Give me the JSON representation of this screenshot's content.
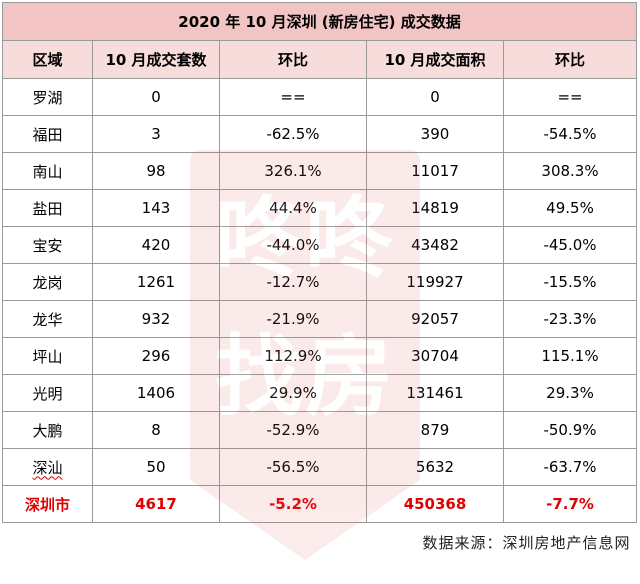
{
  "title": "2020 年 10 月深圳 (新房住宅) 成交数据",
  "headers": [
    "区域",
    "10 月成交套数",
    "环比",
    "10 月成交面积",
    "环比"
  ],
  "rows": [
    [
      "罗湖",
      "0",
      "==",
      "0",
      "=="
    ],
    [
      "福田",
      "3",
      "-62.5%",
      "390",
      "-54.5%"
    ],
    [
      "南山",
      "98",
      "326.1%",
      "11017",
      "308.3%"
    ],
    [
      "盐田",
      "143",
      "44.4%",
      "14819",
      "49.5%"
    ],
    [
      "宝安",
      "420",
      "-44.0%",
      "43482",
      "-45.0%"
    ],
    [
      "龙岗",
      "1261",
      "-12.7%",
      "119927",
      "-15.5%"
    ],
    [
      "龙华",
      "932",
      "-21.9%",
      "92057",
      "-23.3%"
    ],
    [
      "坪山",
      "296",
      "112.9%",
      "30704",
      "115.1%"
    ],
    [
      "光明",
      "1406",
      "29.9%",
      "131461",
      "29.3%"
    ],
    [
      "大鹏",
      "8",
      "-52.9%",
      "879",
      "-50.9%"
    ],
    [
      "深汕",
      "50",
      "-56.5%",
      "5632",
      "-63.7%"
    ]
  ],
  "total": [
    "深圳市",
    "4617",
    "-5.2%",
    "450368",
    "-7.7%"
  ],
  "source": "数据来源：深圳房地产信息网",
  "watermark": "咚咚找房",
  "colors": {
    "title_bg": "#f2c4c4",
    "header_bg": "#f7dcdc",
    "total_text": "#e00000",
    "border": "#9a9a9a"
  }
}
